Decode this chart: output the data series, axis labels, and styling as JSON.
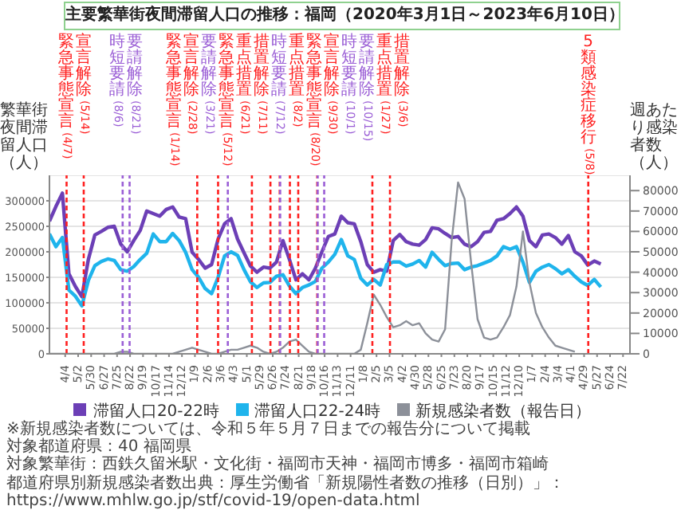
{
  "chart_data": {
    "type": "line",
    "title": "主要繁華街夜間滞留人口の推移：福岡（2020年3月1日～2023年6月10日）",
    "ylabel": "繁華街夜間滞留人口（人）",
    "y2label": "週あたり感染者数（人）",
    "x": [
      "2020-03-01",
      "2020-03-15",
      "2020-03-29",
      "2020-04-12",
      "2020-04-26",
      "2020-05-10",
      "2020-05-24",
      "2020-06-07",
      "2020-06-21",
      "2020-07-05",
      "2020-07-19",
      "2020-08-02",
      "2020-08-16",
      "2020-08-30",
      "2020-09-13",
      "2020-09-27",
      "2020-10-11",
      "2020-10-25",
      "2020-11-08",
      "2020-11-22",
      "2020-12-06",
      "2020-12-20",
      "2021-01-03",
      "2021-01-17",
      "2021-01-31",
      "2021-02-14",
      "2021-02-28",
      "2021-03-14",
      "2021-03-28",
      "2021-04-11",
      "2021-04-25",
      "2021-05-09",
      "2021-05-23",
      "2021-06-06",
      "2021-06-20",
      "2021-07-04",
      "2021-07-18",
      "2021-08-01",
      "2021-08-15",
      "2021-08-29",
      "2021-09-12",
      "2021-09-26",
      "2021-10-10",
      "2021-10-24",
      "2021-11-07",
      "2021-11-21",
      "2021-12-05",
      "2021-12-19",
      "2022-01-02",
      "2022-01-16",
      "2022-01-30",
      "2022-02-13",
      "2022-02-27",
      "2022-03-13",
      "2022-03-27",
      "2022-04-10",
      "2022-04-24",
      "2022-05-08",
      "2022-05-22",
      "2022-06-05",
      "2022-06-19",
      "2022-07-03",
      "2022-07-17",
      "2022-07-31",
      "2022-08-14",
      "2022-08-28",
      "2022-09-11",
      "2022-09-25",
      "2022-10-09",
      "2022-10-23",
      "2022-11-06",
      "2022-11-20",
      "2022-12-04",
      "2022-12-18",
      "2023-01-01",
      "2023-01-15",
      "2023-01-29",
      "2023-02-12",
      "2023-02-26",
      "2023-03-12",
      "2023-03-26",
      "2023-04-09",
      "2023-04-23",
      "2023-05-07",
      "2023-05-21",
      "2023-06-04"
    ],
    "series": [
      {
        "name": "滞留人口20-22時",
        "color": "#6c3fb6",
        "values": [
          260000,
          289000,
          315000,
          157000,
          132000,
          112000,
          185000,
          233000,
          240000,
          248000,
          250000,
          215000,
          200000,
          222000,
          242000,
          280000,
          275000,
          270000,
          283000,
          288000,
          268000,
          265000,
          199000,
          185000,
          168000,
          175000,
          225000,
          255000,
          265000,
          225000,
          198000,
          172000,
          160000,
          170000,
          168000,
          180000,
          222000,
          185000,
          145000,
          157000,
          145000,
          168000,
          200000,
          230000,
          235000,
          270000,
          257000,
          255000,
          220000,
          175000,
          160000,
          165000,
          162000,
          222000,
          234000,
          220000,
          215000,
          213000,
          224000,
          247000,
          245000,
          236000,
          228000,
          230000,
          215000,
          210000,
          220000,
          238000,
          240000,
          262000,
          265000,
          275000,
          288000,
          270000,
          222000,
          210000,
          233000,
          235000,
          228000,
          215000,
          232000,
          200000,
          192000,
          174000,
          182000,
          176000
        ]
      },
      {
        "name": "滞留人口22-24時",
        "color": "#1fb4ec",
        "values": [
          235000,
          210000,
          228000,
          125000,
          113000,
          94000,
          144000,
          173000,
          181000,
          186000,
          183000,
          165000,
          162000,
          171000,
          185000,
          197000,
          235000,
          220000,
          220000,
          236000,
          222000,
          199000,
          165000,
          150000,
          128000,
          118000,
          150000,
          192000,
          200000,
          193000,
          165000,
          141000,
          130000,
          139000,
          140000,
          152000,
          155000,
          133000,
          118000,
          130000,
          135000,
          142000,
          168000,
          180000,
          195000,
          224000,
          192000,
          185000,
          148000,
          135000,
          146000,
          135000,
          175000,
          180000,
          180000,
          172000,
          176000,
          183000,
          170000,
          199000,
          185000,
          173000,
          177000,
          178000,
          165000,
          170000,
          173000,
          178000,
          183000,
          192000,
          210000,
          205000,
          210000,
          180000,
          140000,
          162000,
          170000,
          175000,
          167000,
          157000,
          165000,
          152000,
          141000,
          134000,
          146000,
          131000
        ]
      },
      {
        "name": "新規感染者数（報告日）",
        "color": "#8c9099",
        "axis": "y2",
        "values": [
          0,
          0,
          0,
          0,
          0,
          0,
          0,
          0,
          0,
          0,
          0,
          1000,
          1000,
          0,
          0,
          0,
          0,
          0,
          0,
          0,
          1000,
          2000,
          3000,
          2000,
          1000,
          0,
          0,
          1000,
          2000,
          2000,
          3000,
          4000,
          3000,
          1000,
          0,
          1000,
          3000,
          6000,
          7000,
          4000,
          1000,
          0,
          0,
          0,
          0,
          0,
          0,
          0,
          2000,
          15000,
          29000,
          24000,
          18000,
          13000,
          14000,
          16000,
          14000,
          15000,
          10000,
          7000,
          6000,
          12000,
          55000,
          84000,
          76000,
          45000,
          17000,
          8000,
          7000,
          8000,
          13000,
          19000,
          33000,
          60000,
          35000,
          20000,
          13000,
          8000,
          4000,
          3000,
          2000,
          1000,
          null,
          null,
          null,
          null
        ]
      }
    ],
    "xlim": [
      "2020-03-01",
      "2023-08-06"
    ],
    "xticks": [
      {
        "value": "2020-04-04",
        "label": "4/4"
      },
      {
        "value": "2020-05-02",
        "label": "5/2"
      },
      {
        "value": "2020-05-30",
        "label": "5/30"
      },
      {
        "value": "2020-06-27",
        "label": "6/27"
      },
      {
        "value": "2020-07-25",
        "label": "7/25"
      },
      {
        "value": "2020-08-22",
        "label": "8/22"
      },
      {
        "value": "2020-09-19",
        "label": "9/19"
      },
      {
        "value": "2020-10-17",
        "label": "10/17"
      },
      {
        "value": "2020-11-14",
        "label": "11/14"
      },
      {
        "value": "2020-12-12",
        "label": "12/12"
      },
      {
        "value": "2021-01-09",
        "label": "1/9"
      },
      {
        "value": "2021-02-06",
        "label": "2/6"
      },
      {
        "value": "2021-03-06",
        "label": "3/6"
      },
      {
        "value": "2021-04-03",
        "label": "4/3"
      },
      {
        "value": "2021-05-01",
        "label": "5/1"
      },
      {
        "value": "2021-05-29",
        "label": "5/29"
      },
      {
        "value": "2021-06-26",
        "label": "6/26"
      },
      {
        "value": "2021-07-24",
        "label": "7/24"
      },
      {
        "value": "2021-08-21",
        "label": "8/21"
      },
      {
        "value": "2021-09-18",
        "label": "9/18"
      },
      {
        "value": "2021-10-16",
        "label": "10/16"
      },
      {
        "value": "2021-11-13",
        "label": "11/13"
      },
      {
        "value": "2021-12-11",
        "label": "12/11"
      },
      {
        "value": "2022-01-08",
        "label": "1/8"
      },
      {
        "value": "2022-02-05",
        "label": "2/5"
      },
      {
        "value": "2022-03-05",
        "label": "3/5"
      },
      {
        "value": "2022-04-02",
        "label": "4/2"
      },
      {
        "value": "2022-04-30",
        "label": "4/30"
      },
      {
        "value": "2022-05-28",
        "label": "5/28"
      },
      {
        "value": "2022-06-25",
        "label": "6/25"
      },
      {
        "value": "2022-07-23",
        "label": "7/23"
      },
      {
        "value": "2022-08-20",
        "label": "8/20"
      },
      {
        "value": "2022-09-17",
        "label": "9/17"
      },
      {
        "value": "2022-10-15",
        "label": "10/15"
      },
      {
        "value": "2022-11-12",
        "label": "11/12"
      },
      {
        "value": "2022-12-10",
        "label": "12/10"
      },
      {
        "value": "2023-01-07",
        "label": "1/7"
      },
      {
        "value": "2023-02-04",
        "label": "2/4"
      },
      {
        "value": "2023-03-04",
        "label": "3/4"
      },
      {
        "value": "2023-04-01",
        "label": "4/1"
      },
      {
        "value": "2023-04-29",
        "label": "4/29"
      },
      {
        "value": "2023-05-27",
        "label": "5/27"
      },
      {
        "value": "2023-06-24",
        "label": "6/24"
      },
      {
        "value": "2023-07-22",
        "label": "7/22"
      }
    ],
    "ylim": [
      0,
      350000
    ],
    "yticks": [
      0,
      50000,
      100000,
      150000,
      200000,
      250000,
      300000
    ],
    "y2lim": [
      0,
      87500
    ],
    "y2ticks": [
      0,
      10000,
      20000,
      30000,
      40000,
      50000,
      60000,
      70000,
      80000
    ],
    "ref_lines": [
      {
        "axis": "x",
        "value": "2020-04-07",
        "label": "緊急事態宣言(4/7)",
        "color": "#ff2020",
        "line_style": "dashed"
      },
      {
        "axis": "x",
        "value": "2020-05-14",
        "label": "宣言解除(5/14)",
        "color": "#ff2020",
        "line_style": "dashed"
      },
      {
        "axis": "x",
        "value": "2020-08-06",
        "label": "時短要請(8/6)",
        "color": "#9b5fd6",
        "line_style": "dashed"
      },
      {
        "axis": "x",
        "value": "2020-08-21",
        "label": "要請解除(8/21)",
        "color": "#9b5fd6",
        "line_style": "dashed"
      },
      {
        "axis": "x",
        "value": "2021-01-14",
        "label": "緊急事態宣言(1/14)",
        "color": "#ff2020",
        "line_style": "dashed"
      },
      {
        "axis": "x",
        "value": "2021-02-28",
        "label": "宣言解除(2/28)",
        "color": "#ff2020",
        "line_style": "dashed"
      },
      {
        "axis": "x",
        "value": "2021-03-21",
        "label": "要請解除(3/21)",
        "color": "#9b5fd6",
        "line_style": "dashed"
      },
      {
        "axis": "x",
        "value": "2021-05-12",
        "label": "緊急事態宣言(5/12)",
        "color": "#ff2020",
        "line_style": "dashed"
      },
      {
        "axis": "x",
        "value": "2021-06-21",
        "label": "重点措置(6/21)",
        "color": "#ff2020",
        "line_style": "dashed"
      },
      {
        "axis": "x",
        "value": "2021-07-11",
        "label": "措置解除(7/11)",
        "color": "#ff2020",
        "line_style": "dashed"
      },
      {
        "axis": "x",
        "value": "2021-07-12",
        "label": "時短要請(7/12)",
        "color": "#9b5fd6",
        "line_style": "dashed"
      },
      {
        "axis": "x",
        "value": "2021-08-02",
        "label": "重点措置(8/2)",
        "color": "#ff2020",
        "line_style": "dashed"
      },
      {
        "axis": "x",
        "value": "2021-08-20",
        "label": "緊急事態宣言(8/20)",
        "color": "#ff2020",
        "line_style": "dashed"
      },
      {
        "axis": "x",
        "value": "2021-09-30",
        "label": "宣言解除(9/30)",
        "color": "#ff2020",
        "line_style": "dashed"
      },
      {
        "axis": "x",
        "value": "2021-10-01",
        "label": "時短要請(10/1)",
        "color": "#9b5fd6",
        "line_style": "dashed"
      },
      {
        "axis": "x",
        "value": "2021-10-15",
        "label": "要請解除(10/15)",
        "color": "#9b5fd6",
        "line_style": "dashed"
      },
      {
        "axis": "x",
        "value": "2022-01-27",
        "label": "重点措置(1/27)",
        "color": "#ff2020",
        "line_style": "dashed"
      },
      {
        "axis": "x",
        "value": "2022-03-06",
        "label": "措置解除(3/6)",
        "color": "#ff2020",
        "line_style": "dashed"
      },
      {
        "axis": "x",
        "value": "2023-05-08",
        "label": "5類感染症移行(5/8)",
        "color": "#ff2020",
        "line_style": "dashed"
      }
    ],
    "annotations": [
      "※新規感染者数については、令和５年５月７日までの報告分について掲載",
      "対象都道府県：40 福岡県",
      "対象繁華街：西鉄久留米駅・文化街・福岡市天神・福岡市博多・福岡市箱崎",
      "都道府県別新規感染者数出典：厚生労働省「新規陽性者数の推移（日別）」：https://www.mhlw.go.jp/stf/covid-19/open-data.html"
    ],
    "grid": "y",
    "legend": "bottom",
    "marker": "none",
    "line_style": "solid"
  }
}
